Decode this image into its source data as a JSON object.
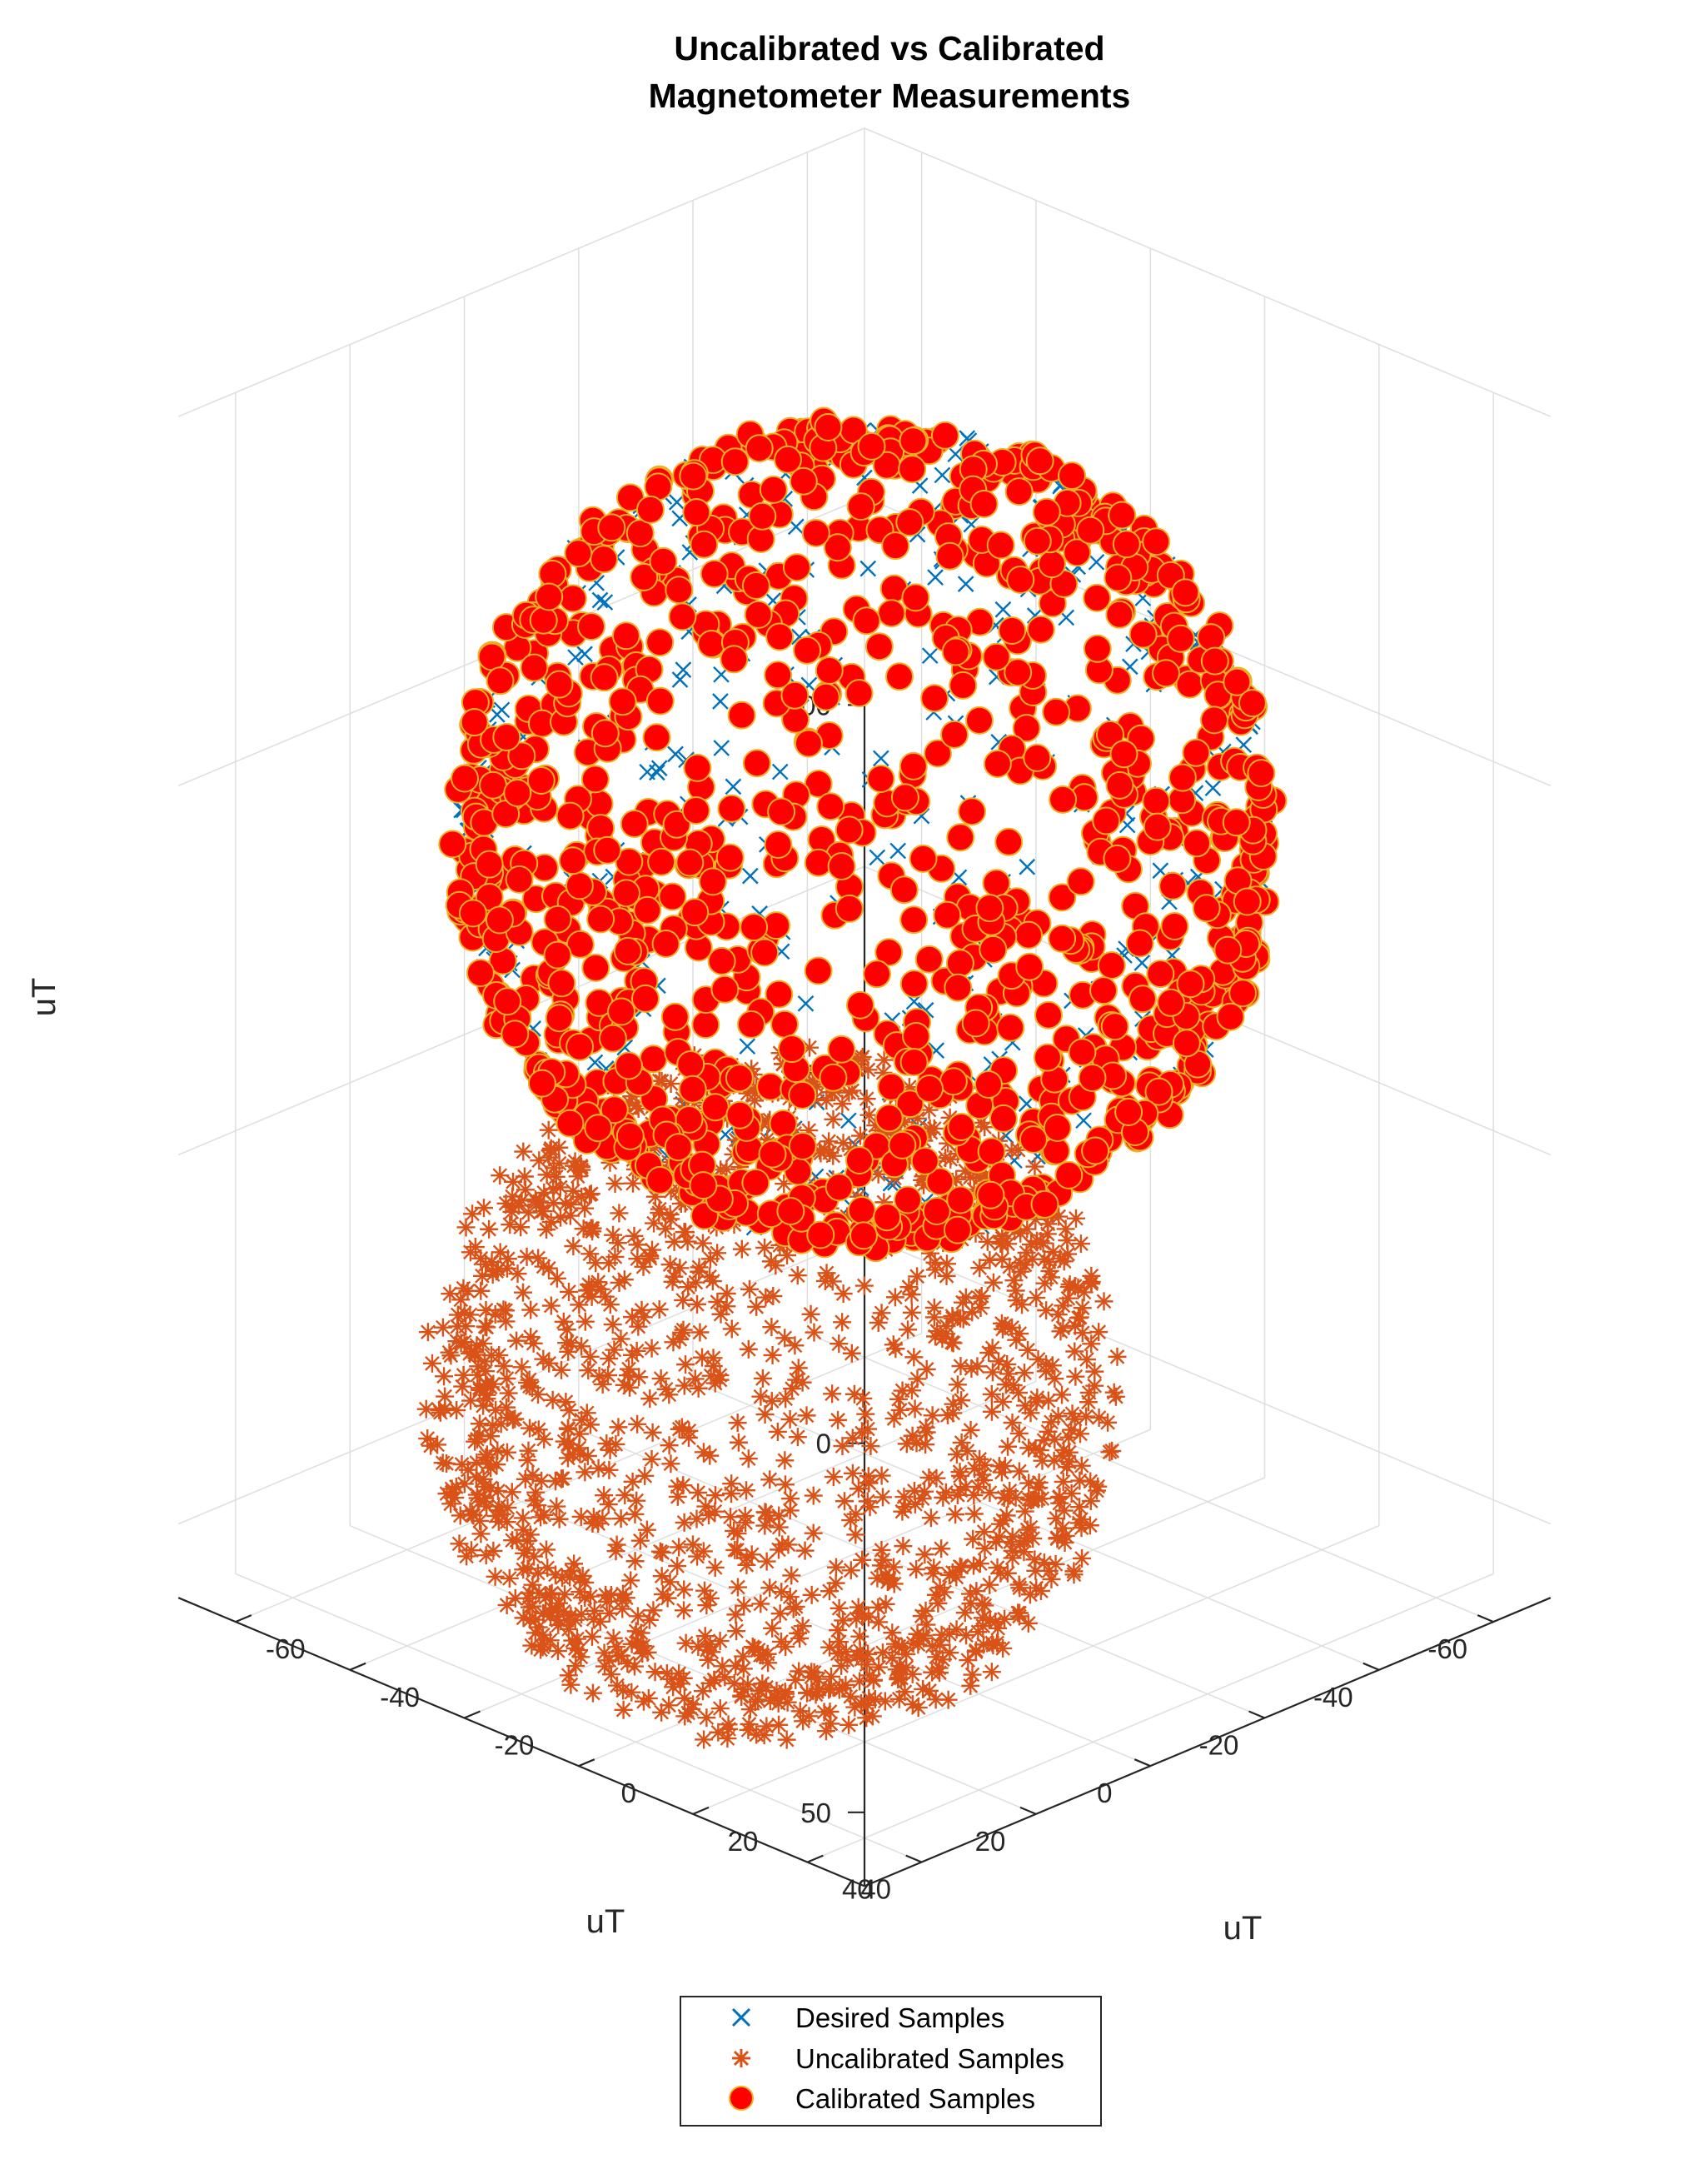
{
  "chart_data": {
    "type": "scatter3d",
    "title": [
      "Uncalibrated vs Calibrated",
      "Magnetometer Measurements"
    ],
    "xlabel": "uT",
    "ylabel": "uT",
    "zlabel": "uT",
    "xlim": [
      -70,
      50
    ],
    "ylim": [
      -70,
      50
    ],
    "zlim": [
      -110,
      50
    ],
    "x_ticks": [
      "40",
      "20",
      "0",
      "-20",
      "-40",
      "-60"
    ],
    "y_ticks": [
      "40",
      "20",
      "0",
      "-20",
      "-40",
      "-60"
    ],
    "z_ticks": [
      "50",
      "0",
      "-50",
      "-100"
    ],
    "grid": true,
    "legend_position": "bottom-center",
    "series": [
      {
        "name": "Desired Samples",
        "marker": "x",
        "color": "#0072bd",
        "center": [
          0,
          0,
          0
        ],
        "radius": 50
      },
      {
        "name": "Uncalibrated Samples",
        "marker": "*",
        "color": "#d95319",
        "center": [
          2,
          -14,
          -80
        ],
        "radius": 40
      },
      {
        "name": "Calibrated Samples",
        "marker": "o",
        "color": "#ff0000",
        "edge_color": "#edb120",
        "center": [
          0,
          0,
          0
        ],
        "radius": 50
      }
    ],
    "legend": [
      "Desired Samples",
      "Uncalibrated Samples",
      "Calibrated Samples"
    ]
  }
}
